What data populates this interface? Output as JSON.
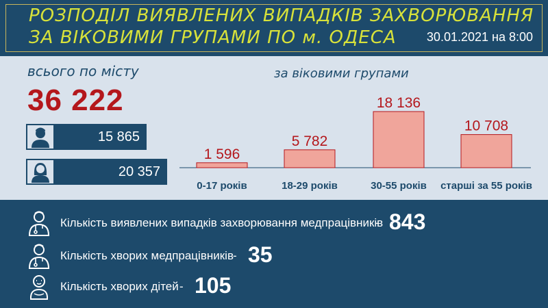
{
  "header": {
    "title_line1": "РОЗПОДІЛ ВИЯВЛЕНИХ ВИПАДКІВ ЗАХВОРЮВАННЯ",
    "title_line2": "ЗА ВІКОВИМИ ГРУПАМИ ПО м. ОДЕСА",
    "date": "30.01.2021 на 8:00"
  },
  "total": {
    "label": "всього по місту",
    "value": "36 222",
    "male": {
      "icon": "male-person-icon",
      "value": "15 865"
    },
    "female": {
      "icon": "female-person-icon",
      "value": "20 357"
    }
  },
  "stats": [
    {
      "icon": "doctor-icon",
      "text": "Кількість виявлених випадків захворювання медпрацівників",
      "dash": "-",
      "value": "843"
    },
    {
      "icon": "doctor-icon",
      "text": "Кількість хворих медпрацівників",
      "dash": "-",
      "value": "35"
    },
    {
      "icon": "baby-icon",
      "text": "Кількість хворих дітей",
      "dash": "-",
      "value": "105"
    }
  ],
  "colors": {
    "header_bg": "#1d4a6b",
    "panel_bg": "#d9e2ec",
    "bar_fill": "#f0a59b",
    "bar_stroke": "#b4171c",
    "value_red": "#b4171c",
    "title_yellow": "#d8e23a"
  },
  "chart_data": {
    "type": "bar",
    "title": "за віковими групами",
    "categories": [
      "0-17 років",
      "18-29 років",
      "30-55 років",
      "старші за 55 років"
    ],
    "values": [
      1596,
      5782,
      18136,
      10708
    ],
    "value_labels": [
      "1 596",
      "5 782",
      "18 136",
      "10 708"
    ],
    "ylim": [
      0,
      18136
    ],
    "grid": false,
    "legend": "none"
  }
}
